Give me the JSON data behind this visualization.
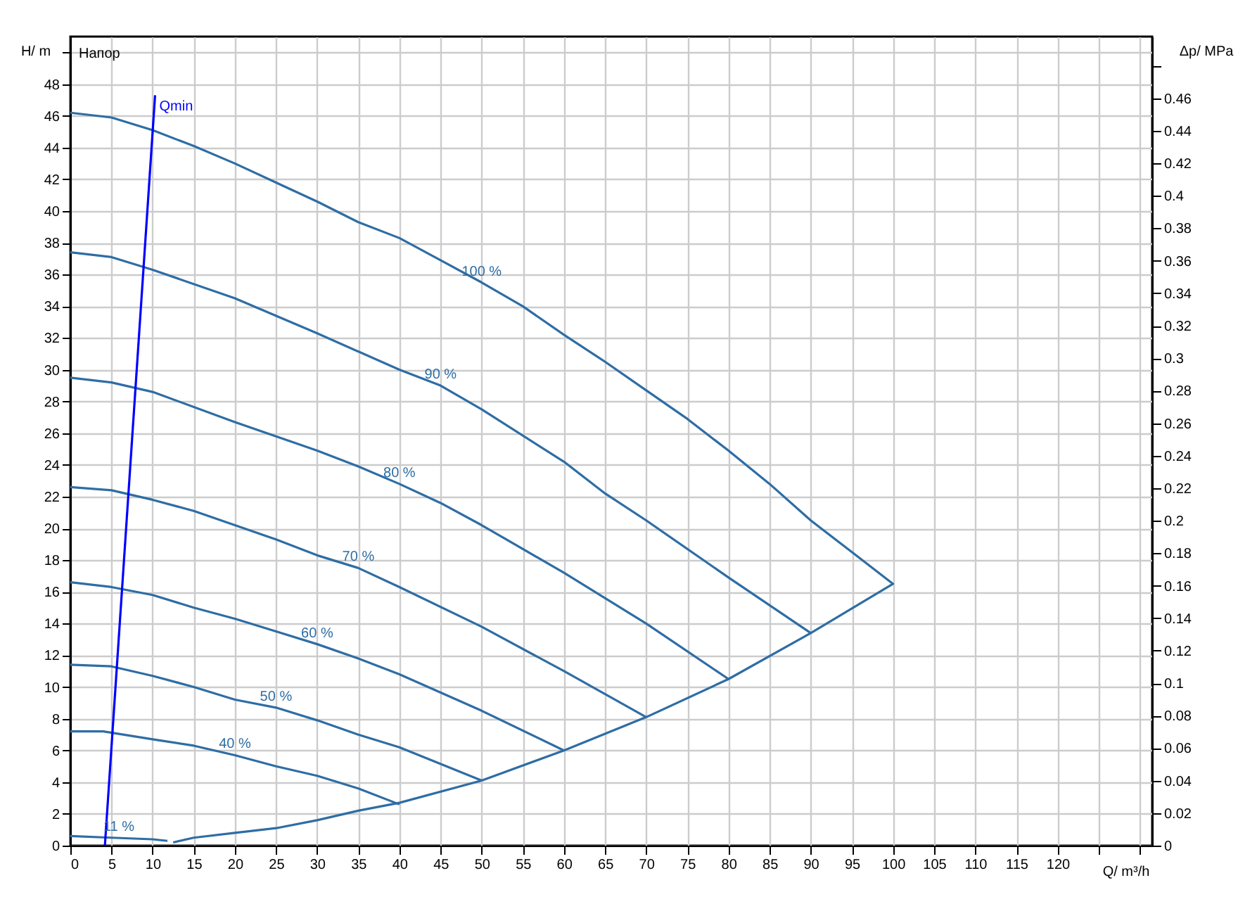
{
  "chart_data": {
    "type": "line",
    "xlabel": "Q/ m³/h",
    "ylabel": "H/ m",
    "y2label": "Δp/ MPa",
    "annotations": [
      "Напор"
    ],
    "xlim": [
      0,
      131.5
    ],
    "ylim": [
      0,
      51
    ],
    "y2lim": [
      0,
      0.498
    ],
    "xticks": [
      0,
      5,
      10,
      15,
      20,
      25,
      30,
      35,
      40,
      45,
      50,
      55,
      60,
      65,
      70,
      75,
      80,
      85,
      90,
      95,
      100,
      105,
      110,
      115,
      120,
      {
        "value": 125,
        "label": null
      },
      {
        "value": 130,
        "label": null
      }
    ],
    "yticks": [
      0,
      2,
      4,
      6,
      8,
      10,
      12,
      14,
      16,
      18,
      20,
      22,
      24,
      26,
      28,
      30,
      32,
      34,
      36,
      38,
      40,
      42,
      44,
      46,
      48,
      {
        "value": 50,
        "label": null
      }
    ],
    "y2ticks": [
      0,
      0.02,
      0.04,
      0.06,
      0.08,
      0.1,
      0.12,
      0.14,
      0.16,
      0.18,
      0.2,
      0.22,
      0.24,
      0.26,
      0.28,
      0.3,
      0.32,
      0.34,
      0.36,
      0.38,
      0.4,
      0.42,
      0.44,
      0.46,
      {
        "value": 0.48,
        "label": null
      }
    ],
    "grid": true,
    "legend": false,
    "marker": "none",
    "line_style": "solid",
    "series": [
      {
        "name": "100 %",
        "color": "#2e6da4",
        "x": [
          0,
          5,
          10,
          15,
          20,
          25,
          30,
          35,
          40,
          45,
          50,
          55,
          60,
          65,
          70,
          75,
          80,
          85,
          90,
          95,
          100,
          90,
          80,
          70,
          60,
          50,
          40,
          35,
          30,
          25,
          20,
          15,
          12.5
        ],
        "values": [
          46.2,
          45.9,
          45.1,
          44.1,
          43.0,
          41.8,
          40.6,
          39.3,
          38.3,
          36.9,
          35.5,
          34.0,
          32.2,
          30.5,
          28.7,
          26.9,
          24.9,
          22.8,
          20.5,
          18.5,
          16.5,
          13.4,
          10.5,
          8.1,
          6.0,
          4.1,
          2.7,
          2.2,
          1.6,
          1.1,
          0.8,
          0.5,
          0.2
        ]
      },
      {
        "name": "90 %",
        "color": "#2e6da4",
        "x": [
          0,
          5,
          10,
          20,
          30,
          40,
          45,
          50,
          60,
          65,
          70,
          80,
          90
        ],
        "values": [
          37.4,
          37.1,
          36.3,
          34.5,
          32.3,
          30.0,
          29.0,
          27.5,
          24.2,
          22.2,
          20.5,
          16.9,
          13.4
        ]
      },
      {
        "name": "80 %",
        "color": "#2e6da4",
        "x": [
          0,
          5,
          10,
          20,
          30,
          35,
          40,
          45,
          50,
          60,
          70,
          80
        ],
        "values": [
          29.5,
          29.2,
          28.6,
          26.7,
          24.9,
          23.9,
          22.8,
          21.6,
          20.2,
          17.2,
          14.0,
          10.5
        ]
      },
      {
        "name": "70 %",
        "color": "#2e6da4",
        "x": [
          0,
          5,
          10,
          15,
          20,
          25,
          30,
          35,
          40,
          50,
          60,
          70
        ],
        "values": [
          22.6,
          22.4,
          21.8,
          21.1,
          20.2,
          19.3,
          18.3,
          17.5,
          16.3,
          13.8,
          11.0,
          8.1
        ]
      },
      {
        "name": "60 %",
        "color": "#2e6da4",
        "x": [
          0,
          5,
          10,
          15,
          20,
          25,
          30,
          35,
          40,
          50,
          60
        ],
        "values": [
          16.6,
          16.3,
          15.8,
          15.0,
          14.3,
          13.5,
          12.7,
          11.8,
          10.8,
          8.5,
          6.0
        ]
      },
      {
        "name": "50 %",
        "color": "#2e6da4",
        "x": [
          0,
          5,
          10,
          15,
          20,
          25,
          30,
          35,
          40,
          50
        ],
        "values": [
          11.4,
          11.3,
          10.7,
          10.0,
          9.2,
          8.7,
          7.9,
          7.0,
          6.2,
          4.1
        ]
      },
      {
        "name": "40 %",
        "color": "#2e6da4",
        "x": [
          0,
          4,
          10,
          15,
          20,
          25,
          30,
          35,
          40
        ],
        "values": [
          7.2,
          7.2,
          6.7,
          6.3,
          5.7,
          5.0,
          4.4,
          3.6,
          2.6
        ]
      },
      {
        "name": "11 %",
        "color": "#2e6da4",
        "x": [
          0,
          5,
          10,
          11.8
        ],
        "values": [
          0.6,
          0.5,
          0.4,
          0.3
        ]
      },
      {
        "name": "Qmin",
        "color": "#0000ff",
        "x": [
          4.2,
          10.3
        ],
        "values": [
          0,
          47.3
        ]
      }
    ]
  }
}
